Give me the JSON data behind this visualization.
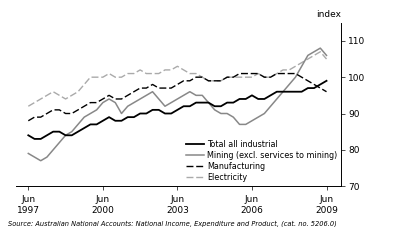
{
  "ylabel": "index",
  "ylim": [
    70,
    115
  ],
  "yticks": [
    70,
    80,
    90,
    100,
    110
  ],
  "source_text": "Source: Australian National Accounts: National Income, Expenditure and Product, (cat. no. 5206.0)",
  "xtick_positions": [
    1997.5,
    2000.5,
    2003.5,
    2006.5,
    2009.5
  ],
  "xtick_labels": [
    "Jun\n1997",
    "Jun\n2000",
    "Jun\n2003",
    "Jun\n2006",
    "Jun\n2009"
  ],
  "xlim": [
    1997.0,
    2010.1
  ],
  "total_all_industrial": [
    84,
    83,
    83,
    84,
    85,
    85,
    84,
    84,
    85,
    86,
    87,
    87,
    88,
    89,
    88,
    88,
    89,
    89,
    90,
    90,
    91,
    91,
    90,
    90,
    91,
    92,
    92,
    93,
    93,
    93,
    92,
    92,
    93,
    93,
    94,
    94,
    95,
    94,
    94,
    95,
    96,
    96,
    96,
    96,
    96,
    97,
    97,
    98,
    99
  ],
  "mining": [
    79,
    78,
    77,
    78,
    80,
    82,
    84,
    85,
    87,
    89,
    90,
    91,
    93,
    94,
    93,
    90,
    92,
    93,
    94,
    95,
    96,
    94,
    92,
    93,
    94,
    95,
    96,
    95,
    95,
    93,
    91,
    90,
    90,
    89,
    87,
    87,
    88,
    89,
    90,
    92,
    94,
    96,
    98,
    100,
    103,
    106,
    107,
    108,
    106
  ],
  "manufacturing": [
    88,
    89,
    89,
    90,
    91,
    91,
    90,
    90,
    91,
    92,
    93,
    93,
    94,
    95,
    94,
    94,
    95,
    96,
    97,
    97,
    98,
    97,
    97,
    97,
    98,
    99,
    99,
    100,
    100,
    99,
    99,
    99,
    100,
    100,
    101,
    101,
    101,
    101,
    100,
    100,
    101,
    101,
    101,
    101,
    100,
    99,
    98,
    97,
    96
  ],
  "electricity": [
    92,
    93,
    94,
    95,
    96,
    95,
    94,
    95,
    96,
    98,
    100,
    100,
    100,
    101,
    100,
    100,
    101,
    101,
    102,
    101,
    101,
    101,
    102,
    102,
    103,
    102,
    101,
    101,
    100,
    99,
    99,
    99,
    100,
    100,
    100,
    100,
    100,
    101,
    100,
    100,
    101,
    102,
    102,
    103,
    104,
    105,
    106,
    107,
    105
  ]
}
